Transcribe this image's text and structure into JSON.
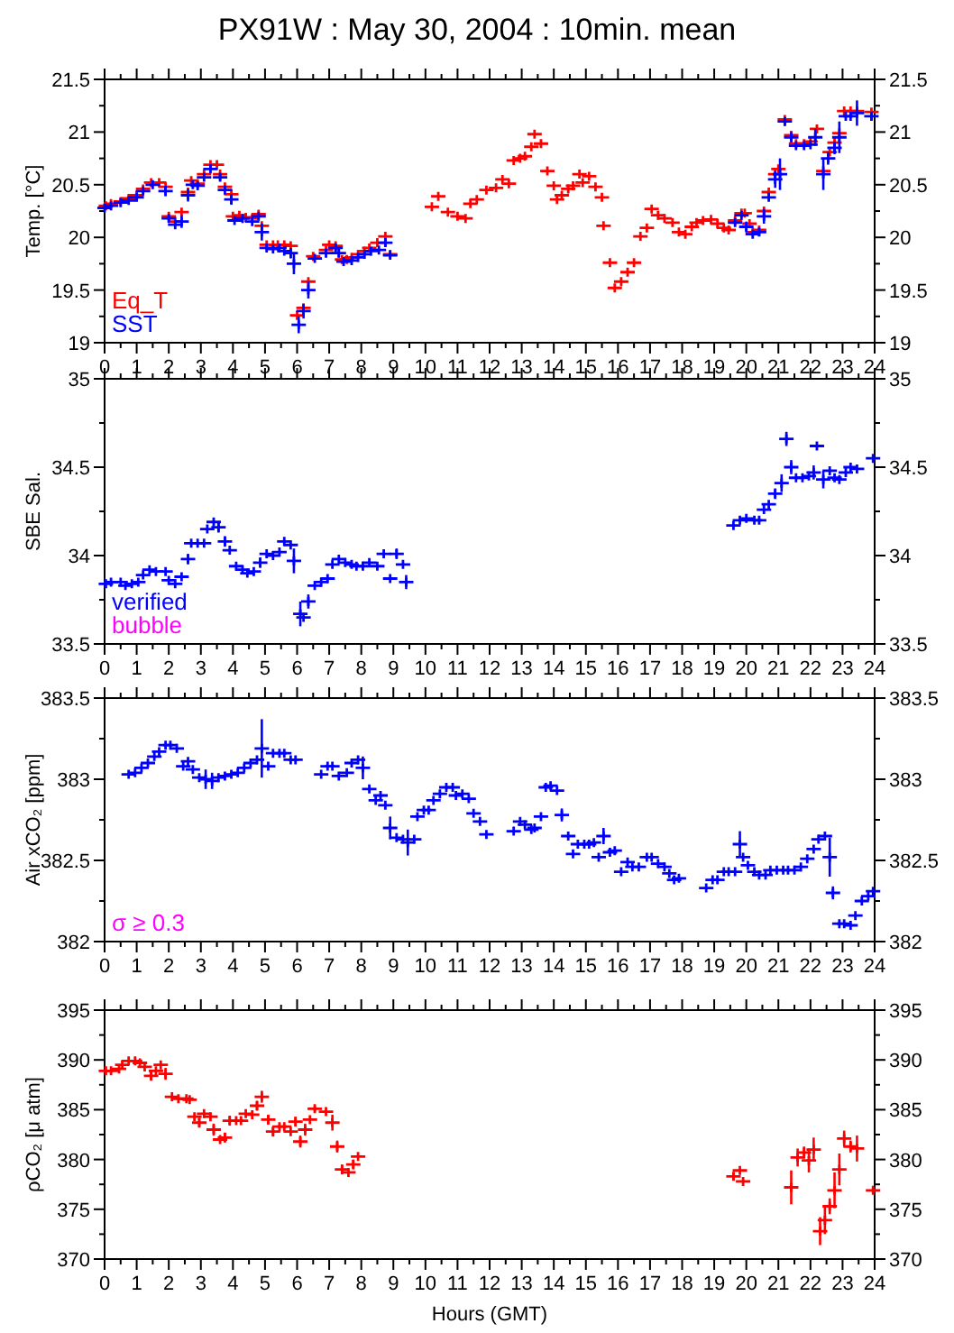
{
  "chart_data": [
    {
      "type": "scatter",
      "title": "PX91W : May 30, 2004 : 10min. mean",
      "ylabel": "Temp. [°C]",
      "marker": "cross",
      "legend": "bottom left",
      "xlim": [
        0,
        24
      ],
      "xticks": [
        0,
        {
          "value": 0.5,
          "label": null
        },
        1,
        {
          "value": 1.5,
          "label": null
        },
        2,
        {
          "value": 2.5,
          "label": null
        },
        3,
        {
          "value": 3.5,
          "label": null
        },
        4,
        {
          "value": 4.5,
          "label": null
        },
        5,
        {
          "value": 5.5,
          "label": null
        },
        6,
        {
          "value": 6.5,
          "label": null
        },
        7,
        {
          "value": 7.5,
          "label": null
        },
        8,
        {
          "value": 8.5,
          "label": null
        },
        9,
        {
          "value": 9.5,
          "label": null
        },
        10,
        {
          "value": 10.5,
          "label": null
        },
        11,
        {
          "value": 11.5,
          "label": null
        },
        12,
        {
          "value": 12.5,
          "label": null
        },
        13,
        {
          "value": 13.5,
          "label": null
        },
        14,
        {
          "value": 14.5,
          "label": null
        },
        15,
        {
          "value": 15.5,
          "label": null
        },
        16,
        {
          "value": 16.5,
          "label": null
        },
        17,
        {
          "value": 17.5,
          "label": null
        },
        18,
        {
          "value": 18.5,
          "label": null
        },
        19,
        {
          "value": 19.5,
          "label": null
        },
        20,
        {
          "value": 20.5,
          "label": null
        },
        21,
        {
          "value": 21.5,
          "label": null
        },
        22,
        {
          "value": 22.5,
          "label": null
        },
        23,
        {
          "value": 23.5,
          "label": null
        },
        24
      ],
      "ylim": [
        19,
        21.5
      ],
      "yticks": [
        19,
        {
          "value": 19.25,
          "label": null
        },
        19.5,
        {
          "value": 19.75,
          "label": null
        },
        20,
        {
          "value": 20.25,
          "label": null
        },
        20.5,
        {
          "value": 20.75,
          "label": null
        },
        21,
        {
          "value": 21.25,
          "label": null
        },
        21.5
      ],
      "y2lim": [
        19,
        21.5
      ],
      "y2ticks": [
        19,
        {
          "value": 19.25,
          "label": null
        },
        19.5,
        {
          "value": 19.75,
          "label": null
        },
        20,
        {
          "value": 20.25,
          "label": null
        },
        20.5,
        {
          "value": 20.75,
          "label": null
        },
        21,
        {
          "value": 21.25,
          "label": null
        },
        21.5
      ],
      "series": [
        {
          "name": "Eq_T",
          "color": "#ff0000",
          "x": [
            0.04,
            0.2,
            0.5,
            0.75,
            1.0,
            1.2,
            1.45,
            1.7,
            1.9,
            2.0,
            2.2,
            2.4,
            2.6,
            2.7,
            2.9,
            3.1,
            3.3,
            3.5,
            3.6,
            3.75,
            3.95,
            4.0,
            4.2,
            4.4,
            4.6,
            4.8,
            4.9,
            5.05,
            5.25,
            5.4,
            5.6,
            5.8,
            6.0,
            6.2,
            6.35,
            6.5,
            6.9,
            7.0,
            7.2,
            7.4,
            7.55,
            7.7,
            7.9,
            8.1,
            8.25,
            8.5,
            8.75,
            8.9,
            10.2,
            10.4,
            10.7,
            11.0,
            11.25,
            11.4,
            11.6,
            11.9,
            12.2,
            12.4,
            12.6,
            12.75,
            12.95,
            13.1,
            13.3,
            13.4,
            13.6,
            13.8,
            14.0,
            14.1,
            14.25,
            14.45,
            14.6,
            14.8,
            14.9,
            15.1,
            15.3,
            15.5,
            15.55,
            15.75,
            15.9,
            16.1,
            16.3,
            16.5,
            16.7,
            16.9,
            17.05,
            17.25,
            17.45,
            17.7,
            17.9,
            18.1,
            18.3,
            18.45,
            18.65,
            18.9,
            19.1,
            19.3,
            19.45,
            19.65,
            19.85,
            19.95,
            20.1,
            20.2,
            20.4,
            20.55,
            20.7,
            20.9,
            21.0,
            21.2,
            21.4,
            21.55,
            21.8,
            22.0,
            22.2,
            22.4,
            22.6,
            22.75,
            22.9,
            23.05,
            23.25,
            23.45,
            23.9
          ],
          "values": [
            20.3,
            20.32,
            20.34,
            20.37,
            20.4,
            20.46,
            20.52,
            20.52,
            20.48,
            20.2,
            20.15,
            20.24,
            20.43,
            20.54,
            20.51,
            20.6,
            20.69,
            20.69,
            20.6,
            20.48,
            20.41,
            20.2,
            20.21,
            20.19,
            20.18,
            20.22,
            20.11,
            19.93,
            19.93,
            19.93,
            19.93,
            19.92,
            19.26,
            19.33,
            19.58,
            19.82,
            19.88,
            19.93,
            19.92,
            19.79,
            19.79,
            19.81,
            19.84,
            19.87,
            19.9,
            19.95,
            20.01,
            19.84,
            20.29,
            20.39,
            20.24,
            20.2,
            20.18,
            20.32,
            20.36,
            20.45,
            20.47,
            20.55,
            20.51,
            20.73,
            20.75,
            20.77,
            20.86,
            20.98,
            20.89,
            20.63,
            20.49,
            20.36,
            20.4,
            20.46,
            20.49,
            20.6,
            20.52,
            20.58,
            20.48,
            20.38,
            20.11,
            19.76,
            19.52,
            19.58,
            19.67,
            19.76,
            20.01,
            20.09,
            20.27,
            20.21,
            20.18,
            20.14,
            20.05,
            20.03,
            20.1,
            20.14,
            20.16,
            20.17,
            20.13,
            20.09,
            20.07,
            20.16,
            20.23,
            20.23,
            20.13,
            20.05,
            20.07,
            20.25,
            20.43,
            20.6,
            20.65,
            21.12,
            20.97,
            20.89,
            20.89,
            20.91,
            21.03,
            20.63,
            20.81,
            20.9,
            20.99,
            21.2,
            21.2,
            21.2,
            21.19
          ]
        },
        {
          "name": "SST",
          "color": "#0000ff",
          "x": [
            0.0,
            0.2,
            0.5,
            0.75,
            1.0,
            1.2,
            1.5,
            1.9,
            2.0,
            2.2,
            2.4,
            2.6,
            2.75,
            2.9,
            3.1,
            3.3,
            3.6,
            3.75,
            3.95,
            4.05,
            4.3,
            4.6,
            4.8,
            4.9,
            5.05,
            5.25,
            5.45,
            5.6,
            5.8,
            5.9,
            6.05,
            6.2,
            6.35,
            6.55,
            6.9,
            7.2,
            7.3,
            7.45,
            7.7,
            7.9,
            8.1,
            8.3,
            8.55,
            8.75,
            8.9,
            19.65,
            19.85,
            20.0,
            20.2,
            20.4,
            20.55,
            20.7,
            20.9,
            21.05,
            21.2,
            21.4,
            21.55,
            21.8,
            22.0,
            22.15,
            22.4,
            22.55,
            22.75,
            22.9,
            23.1,
            23.25,
            23.45,
            23.9
          ],
          "values": [
            20.28,
            20.3,
            20.33,
            20.35,
            20.38,
            20.44,
            20.5,
            20.44,
            20.18,
            20.12,
            20.15,
            20.4,
            20.5,
            20.49,
            20.57,
            20.65,
            20.57,
            20.45,
            20.36,
            20.16,
            20.18,
            20.15,
            20.2,
            20.05,
            19.9,
            19.89,
            19.9,
            19.87,
            19.85,
            19.75,
            19.17,
            19.3,
            19.5,
            19.8,
            19.85,
            19.9,
            19.85,
            19.77,
            19.78,
            19.81,
            19.84,
            19.87,
            19.88,
            19.95,
            19.83,
            20.14,
            20.21,
            20.1,
            20.03,
            20.05,
            20.2,
            20.38,
            20.55,
            20.6,
            21.1,
            20.95,
            20.87,
            20.87,
            20.88,
            20.95,
            20.6,
            20.75,
            20.85,
            20.95,
            21.15,
            21.15,
            21.18,
            21.15
          ],
          "errors": [
            null,
            null,
            null,
            null,
            null,
            null,
            null,
            0.05,
            0.03,
            null,
            0.06,
            0.06,
            null,
            null,
            null,
            null,
            0.03,
            null,
            0.05,
            null,
            null,
            null,
            null,
            0.08,
            null,
            null,
            null,
            null,
            0.05,
            0.1,
            0.08,
            0.07,
            0.08,
            null,
            null,
            0.03,
            0.04,
            null,
            null,
            null,
            null,
            null,
            null,
            0.04,
            null,
            null,
            null,
            0.05,
            null,
            0.04,
            0.07,
            null,
            0.08,
            0.15,
            0.04,
            0.05,
            null,
            null,
            null,
            0.08,
            0.15,
            0.06,
            0.06,
            0.15,
            null,
            null,
            0.12,
            0.04
          ]
        }
      ]
    },
    {
      "type": "scatter",
      "ylabel": "SBE Sal.",
      "marker": "cross",
      "legend": "bottom left",
      "xlim": [
        0,
        24
      ],
      "xticks": [
        0,
        {
          "value": 0.5,
          "label": null
        },
        1,
        {
          "value": 1.5,
          "label": null
        },
        2,
        {
          "value": 2.5,
          "label": null
        },
        3,
        {
          "value": 3.5,
          "label": null
        },
        4,
        {
          "value": 4.5,
          "label": null
        },
        5,
        {
          "value": 5.5,
          "label": null
        },
        6,
        {
          "value": 6.5,
          "label": null
        },
        7,
        {
          "value": 7.5,
          "label": null
        },
        8,
        {
          "value": 8.5,
          "label": null
        },
        9,
        {
          "value": 9.5,
          "label": null
        },
        10,
        {
          "value": 10.5,
          "label": null
        },
        11,
        {
          "value": 11.5,
          "label": null
        },
        12,
        {
          "value": 12.5,
          "label": null
        },
        13,
        {
          "value": 13.5,
          "label": null
        },
        14,
        {
          "value": 14.5,
          "label": null
        },
        15,
        {
          "value": 15.5,
          "label": null
        },
        16,
        {
          "value": 16.5,
          "label": null
        },
        17,
        {
          "value": 17.5,
          "label": null
        },
        18,
        {
          "value": 18.5,
          "label": null
        },
        19,
        {
          "value": 19.5,
          "label": null
        },
        20,
        {
          "value": 20.5,
          "label": null
        },
        21,
        {
          "value": 21.5,
          "label": null
        },
        22,
        {
          "value": 22.5,
          "label": null
        },
        23,
        {
          "value": 23.5,
          "label": null
        },
        24
      ],
      "ylim": [
        33.5,
        35
      ],
      "yticks": [
        33.5,
        {
          "value": 33.75,
          "label": null
        },
        34,
        {
          "value": 34.25,
          "label": null
        },
        34.5,
        {
          "value": 34.75,
          "label": null
        },
        35
      ],
      "y2lim": [
        33.5,
        35
      ],
      "y2ticks": [
        33.5,
        {
          "value": 33.75,
          "label": null
        },
        34,
        {
          "value": 34.25,
          "label": null
        },
        34.5,
        {
          "value": 34.75,
          "label": null
        },
        35
      ],
      "series": [
        {
          "name": "verified",
          "color": "#0000ff",
          "x": [
            0.04,
            0.2,
            0.5,
            0.65,
            0.85,
            1.05,
            1.2,
            1.4,
            1.6,
            1.9,
            2.0,
            2.2,
            2.4,
            2.6,
            2.7,
            2.9,
            3.1,
            3.2,
            3.4,
            3.55,
            3.75,
            3.9,
            4.1,
            4.3,
            4.45,
            4.65,
            4.85,
            5.05,
            5.25,
            5.45,
            5.6,
            5.8,
            5.9,
            6.1,
            6.2,
            6.35,
            6.55,
            6.75,
            6.95,
            7.1,
            7.3,
            7.5,
            7.7,
            7.85,
            8.05,
            8.25,
            8.5,
            8.7,
            8.9,
            9.1,
            9.3,
            9.4,
            19.6,
            19.8,
            20.0,
            20.25,
            20.4,
            20.55,
            20.7,
            20.9,
            21.1,
            21.25,
            21.4,
            21.55,
            21.75,
            21.95,
            22.1,
            22.2,
            22.4,
            22.6,
            22.75,
            22.9,
            23.1,
            23.25,
            23.45,
            23.95
          ],
          "values": [
            33.84,
            33.85,
            33.85,
            33.83,
            33.84,
            33.85,
            33.89,
            33.92,
            33.91,
            33.91,
            33.86,
            33.84,
            33.88,
            33.98,
            34.07,
            34.07,
            34.07,
            34.15,
            34.19,
            34.16,
            34.08,
            34.03,
            33.94,
            33.92,
            33.9,
            33.91,
            33.96,
            34.01,
            34.0,
            34.02,
            34.08,
            34.06,
            33.97,
            33.67,
            33.65,
            33.74,
            33.83,
            33.85,
            33.87,
            33.95,
            33.98,
            33.96,
            33.95,
            33.94,
            33.94,
            33.96,
            33.94,
            34.01,
            33.87,
            34.01,
            33.95,
            33.85,
            34.17,
            34.2,
            34.21,
            34.2,
            34.2,
            34.26,
            34.29,
            34.35,
            34.41,
            34.66,
            34.5,
            34.44,
            34.44,
            34.45,
            34.47,
            34.62,
            34.43,
            34.48,
            34.44,
            34.43,
            34.47,
            34.5,
            34.49,
            34.55
          ],
          "errors": [
            null,
            null,
            null,
            null,
            null,
            null,
            null,
            null,
            null,
            null,
            null,
            null,
            null,
            0.03,
            null,
            null,
            null,
            null,
            null,
            0.03,
            0.03,
            null,
            null,
            null,
            null,
            null,
            0.03,
            null,
            null,
            null,
            null,
            null,
            0.07,
            0.07,
            null,
            0.04,
            null,
            null,
            null,
            null,
            null,
            null,
            null,
            null,
            null,
            null,
            null,
            null,
            null,
            0.03,
            null,
            0.04,
            null,
            null,
            null,
            null,
            null,
            null,
            null,
            0.03,
            0.05,
            0.04,
            0.04,
            null,
            null,
            null,
            0.04,
            null,
            0.05,
            null,
            null,
            null,
            null,
            null,
            null,
            null
          ]
        },
        {
          "name": "bubble",
          "color": "#ff00ff"
        }
      ]
    },
    {
      "type": "scatter",
      "ylabel": "Air xCO₂ [ppm]",
      "marker": "cross",
      "annotations": [
        "σ ≥ 0.3"
      ],
      "xlim": [
        0,
        24
      ],
      "xticks": [
        0,
        {
          "value": 0.5,
          "label": null
        },
        1,
        {
          "value": 1.5,
          "label": null
        },
        2,
        {
          "value": 2.5,
          "label": null
        },
        3,
        {
          "value": 3.5,
          "label": null
        },
        4,
        {
          "value": 4.5,
          "label": null
        },
        5,
        {
          "value": 5.5,
          "label": null
        },
        6,
        {
          "value": 6.5,
          "label": null
        },
        7,
        {
          "value": 7.5,
          "label": null
        },
        8,
        {
          "value": 8.5,
          "label": null
        },
        9,
        {
          "value": 9.5,
          "label": null
        },
        10,
        {
          "value": 10.5,
          "label": null
        },
        11,
        {
          "value": 11.5,
          "label": null
        },
        12,
        {
          "value": 12.5,
          "label": null
        },
        13,
        {
          "value": 13.5,
          "label": null
        },
        14,
        {
          "value": 14.5,
          "label": null
        },
        15,
        {
          "value": 15.5,
          "label": null
        },
        16,
        {
          "value": 16.5,
          "label": null
        },
        17,
        {
          "value": 17.5,
          "label": null
        },
        18,
        {
          "value": 18.5,
          "label": null
        },
        19,
        {
          "value": 19.5,
          "label": null
        },
        20,
        {
          "value": 20.5,
          "label": null
        },
        21,
        {
          "value": 21.5,
          "label": null
        },
        22,
        {
          "value": 22.5,
          "label": null
        },
        23,
        {
          "value": 23.5,
          "label": null
        },
        24
      ],
      "ylim": [
        382,
        383.5
      ],
      "yticks": [
        382,
        {
          "value": 382.25,
          "label": null
        },
        382.5,
        {
          "value": 382.75,
          "label": null
        },
        383,
        {
          "value": 383.25,
          "label": null
        },
        383.5
      ],
      "y2lim": [
        382,
        383.5
      ],
      "y2ticks": [
        382,
        {
          "value": 382.25,
          "label": null
        },
        382.5,
        {
          "value": 382.75,
          "label": null
        },
        383,
        {
          "value": 383.25,
          "label": null
        },
        383.5
      ],
      "series": [
        {
          "color": "#0000ff",
          "x": [
            0.75,
            0.95,
            1.15,
            1.35,
            1.55,
            1.7,
            1.9,
            2.05,
            2.25,
            2.45,
            2.6,
            2.75,
            2.95,
            3.15,
            3.35,
            3.55,
            3.75,
            3.95,
            4.15,
            4.35,
            4.55,
            4.75,
            4.9,
            5.1,
            5.25,
            5.45,
            5.6,
            5.8,
            5.95,
            6.75,
            6.95,
            7.1,
            7.3,
            7.55,
            7.7,
            7.9,
            8.05,
            8.25,
            8.45,
            8.6,
            8.75,
            8.9,
            9.1,
            9.3,
            9.45,
            9.65,
            9.75,
            9.95,
            10.1,
            10.25,
            10.45,
            10.65,
            10.85,
            10.95,
            11.15,
            11.35,
            11.5,
            11.7,
            11.9,
            12.75,
            12.95,
            13.1,
            13.3,
            13.4,
            13.6,
            13.75,
            13.9,
            14.1,
            14.25,
            14.45,
            14.6,
            14.75,
            14.95,
            15.1,
            15.25,
            15.4,
            15.55,
            15.75,
            15.9,
            16.1,
            16.3,
            16.45,
            16.65,
            16.9,
            17.05,
            17.25,
            17.45,
            17.6,
            17.75,
            17.9,
            18.75,
            18.95,
            19.1,
            19.3,
            19.45,
            19.65,
            19.8,
            19.9,
            20.05,
            20.25,
            20.4,
            20.6,
            20.75,
            20.95,
            21.15,
            21.3,
            21.5,
            21.7,
            21.9,
            22.1,
            22.25,
            22.45,
            22.6,
            22.7,
            22.9,
            23.05,
            23.25,
            23.4,
            23.6,
            23.8,
            23.95
          ],
          "values": [
            383.03,
            383.04,
            383.07,
            383.1,
            383.14,
            383.17,
            383.21,
            383.21,
            383.19,
            383.08,
            383.11,
            383.06,
            383.01,
            383.0,
            382.99,
            383.01,
            383.02,
            383.03,
            383.04,
            383.07,
            383.1,
            383.12,
            383.19,
            383.08,
            383.16,
            383.16,
            383.16,
            383.12,
            383.12,
            383.03,
            383.08,
            383.08,
            383.02,
            383.04,
            383.1,
            383.12,
            383.07,
            382.94,
            382.87,
            382.9,
            382.84,
            382.7,
            382.64,
            382.63,
            382.61,
            382.63,
            382.77,
            382.81,
            382.81,
            382.87,
            382.91,
            382.95,
            382.95,
            382.9,
            382.91,
            382.88,
            382.79,
            382.74,
            382.66,
            382.68,
            382.74,
            382.72,
            382.69,
            382.7,
            382.77,
            382.95,
            382.96,
            382.93,
            382.78,
            382.65,
            382.54,
            382.6,
            382.6,
            382.6,
            382.61,
            382.52,
            382.65,
            382.55,
            382.56,
            382.43,
            382.49,
            382.46,
            382.46,
            382.52,
            382.52,
            382.48,
            382.46,
            382.42,
            382.38,
            382.39,
            382.33,
            382.38,
            382.38,
            382.43,
            382.43,
            382.43,
            382.6,
            382.52,
            382.47,
            382.43,
            382.41,
            382.41,
            382.44,
            382.44,
            382.44,
            382.44,
            382.44,
            382.46,
            382.51,
            382.57,
            382.63,
            382.65,
            382.52,
            382.3,
            382.11,
            382.11,
            382.1,
            382.16,
            382.25,
            382.28,
            382.31
          ],
          "errors": [
            null,
            null,
            null,
            null,
            null,
            null,
            null,
            null,
            null,
            null,
            null,
            null,
            null,
            0.06,
            0.05,
            null,
            null,
            null,
            null,
            null,
            null,
            null,
            0.18,
            null,
            null,
            null,
            null,
            null,
            null,
            null,
            null,
            null,
            null,
            null,
            null,
            null,
            0.07,
            null,
            null,
            null,
            null,
            0.07,
            null,
            null,
            0.08,
            null,
            null,
            null,
            null,
            null,
            null,
            null,
            null,
            null,
            null,
            null,
            null,
            null,
            null,
            null,
            null,
            null,
            null,
            null,
            null,
            null,
            null,
            null,
            0.04,
            null,
            null,
            null,
            null,
            null,
            null,
            null,
            0.05,
            null,
            null,
            null,
            null,
            null,
            null,
            null,
            null,
            null,
            null,
            null,
            null,
            null,
            null,
            null,
            null,
            null,
            null,
            null,
            0.08,
            null,
            null,
            null,
            null,
            null,
            null,
            null,
            null,
            null,
            null,
            null,
            null,
            null,
            null,
            null,
            0.12,
            0.04,
            null,
            null,
            null,
            null,
            null,
            null,
            null
          ]
        }
      ]
    },
    {
      "type": "scatter",
      "ylabel": "ρCO₂ [μ atm]",
      "xlabel": "Hours (GMT)",
      "marker": "cross",
      "xlim": [
        0,
        24
      ],
      "xticks": [
        0,
        {
          "value": 0.5,
          "label": null
        },
        1,
        {
          "value": 1.5,
          "label": null
        },
        2,
        {
          "value": 2.5,
          "label": null
        },
        3,
        {
          "value": 3.5,
          "label": null
        },
        4,
        {
          "value": 4.5,
          "label": null
        },
        5,
        {
          "value": 5.5,
          "label": null
        },
        6,
        {
          "value": 6.5,
          "label": null
        },
        7,
        {
          "value": 7.5,
          "label": null
        },
        8,
        {
          "value": 8.5,
          "label": null
        },
        9,
        {
          "value": 9.5,
          "label": null
        },
        10,
        {
          "value": 10.5,
          "label": null
        },
        11,
        {
          "value": 11.5,
          "label": null
        },
        12,
        {
          "value": 12.5,
          "label": null
        },
        13,
        {
          "value": 13.5,
          "label": null
        },
        14,
        {
          "value": 14.5,
          "label": null
        },
        15,
        {
          "value": 15.5,
          "label": null
        },
        16,
        {
          "value": 16.5,
          "label": null
        },
        17,
        {
          "value": 17.5,
          "label": null
        },
        18,
        {
          "value": 18.5,
          "label": null
        },
        19,
        {
          "value": 19.5,
          "label": null
        },
        20,
        {
          "value": 20.5,
          "label": null
        },
        21,
        {
          "value": 21.5,
          "label": null
        },
        22,
        {
          "value": 22.5,
          "label": null
        },
        23,
        {
          "value": 23.5,
          "label": null
        },
        24
      ],
      "ylim": [
        370,
        395
      ],
      "yticks": [
        370,
        {
          "value": 372.5,
          "label": null
        },
        375,
        {
          "value": 377.5,
          "label": null
        },
        380,
        {
          "value": 382.5,
          "label": null
        },
        385,
        {
          "value": 387.5,
          "label": null
        },
        390,
        {
          "value": 392.5,
          "label": null
        },
        395
      ],
      "y2lim": [
        370,
        395
      ],
      "y2ticks": [
        370,
        {
          "value": 372.5,
          "label": null
        },
        375,
        {
          "value": 377.5,
          "label": null
        },
        380,
        {
          "value": 382.5,
          "label": null
        },
        385,
        {
          "value": 387.5,
          "label": null
        },
        390,
        {
          "value": 392.5,
          "label": null
        },
        395
      ],
      "series": [
        {
          "color": "#ff0000",
          "x": [
            0.04,
            0.2,
            0.45,
            0.55,
            0.75,
            0.95,
            1.1,
            1.25,
            1.45,
            1.6,
            1.75,
            1.9,
            2.1,
            2.3,
            2.55,
            2.65,
            2.8,
            2.95,
            3.1,
            3.3,
            3.4,
            3.6,
            3.75,
            3.9,
            4.1,
            4.25,
            4.4,
            4.6,
            4.75,
            4.9,
            5.1,
            5.25,
            5.45,
            5.6,
            5.8,
            5.95,
            6.1,
            6.25,
            6.4,
            6.55,
            6.9,
            7.1,
            7.25,
            7.4,
            7.6,
            7.75,
            7.9,
            19.6,
            19.8,
            19.9,
            21.4,
            21.6,
            21.8,
            21.95,
            22.1,
            22.3,
            22.45,
            22.6,
            22.75,
            22.9,
            23.05,
            23.25,
            23.45,
            23.95
          ],
          "values": [
            388.9,
            388.9,
            389.1,
            389.5,
            389.9,
            389.9,
            389.7,
            389.3,
            388.4,
            388.9,
            389.5,
            388.6,
            386.3,
            386.1,
            386.1,
            386.0,
            384.3,
            383.7,
            384.6,
            384.3,
            383.0,
            382.0,
            382.2,
            383.9,
            383.9,
            383.9,
            384.6,
            384.5,
            385.4,
            386.3,
            384.0,
            382.8,
            383.3,
            383.3,
            382.8,
            383.8,
            381.8,
            383.0,
            384.0,
            385.1,
            384.8,
            383.7,
            381.3,
            379.0,
            378.7,
            379.5,
            380.3,
            378.3,
            378.9,
            377.8,
            377.2,
            380.2,
            380.7,
            379.9,
            381.0,
            372.8,
            373.9,
            375.3,
            376.9,
            379.0,
            382.1,
            381.3,
            381.1,
            376.9
          ],
          "errors": [
            null,
            null,
            null,
            null,
            null,
            null,
            null,
            null,
            0.5,
            null,
            null,
            0.6,
            null,
            null,
            null,
            null,
            null,
            0.5,
            null,
            null,
            0.6,
            null,
            0.5,
            0.5,
            null,
            null,
            null,
            null,
            0.5,
            0.6,
            0.5,
            0.5,
            null,
            null,
            null,
            0.5,
            0.6,
            0.6,
            null,
            0.3,
            null,
            0.8,
            0.6,
            0.5,
            null,
            0.5,
            null,
            0.4,
            null,
            null,
            1.7,
            0.9,
            0.6,
            1.2,
            1.2,
            1.4,
            1.4,
            0.8,
            1.8,
            1.6,
            0.8,
            0.6,
            1.3,
            0.3
          ]
        }
      ]
    }
  ]
}
